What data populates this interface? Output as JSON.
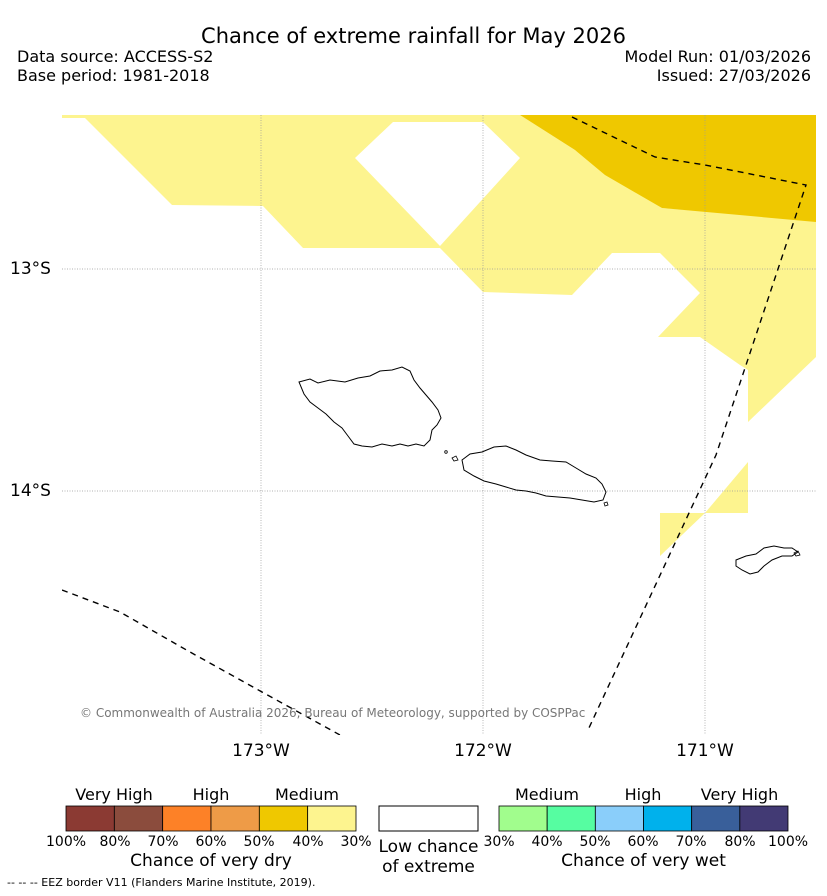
{
  "header": {
    "title": "Chance of extreme rainfall for May 2026",
    "data_source": "Data source: ACCESS-S2",
    "base_period": "Base period: 1981-2018",
    "model_run": "Model Run: 01/03/2026",
    "issued": "Issued: 27/03/2026"
  },
  "map": {
    "lat_labels": [
      "13°S",
      "14°S"
    ],
    "lon_labels": [
      "173°W",
      "172°W",
      "171°W"
    ],
    "copyright": "© Commonwealth of Australia 2026, Bureau of Meteorology, supported by COSPPac",
    "colors": {
      "medium_dry": "#fdf48f",
      "high_dry": "#efc800",
      "coast": "#000000",
      "grid": "#999999"
    }
  },
  "legend": {
    "dry": {
      "headers": [
        "Very High",
        "High",
        "Medium"
      ],
      "colors": [
        "#8b3a33",
        "#8b4c3d",
        "#fd8127",
        "#ee9b47",
        "#efc800",
        "#fdf48f"
      ],
      "ticks": [
        "100%",
        "80%",
        "70%",
        "60%",
        "50%",
        "40%",
        "30%"
      ],
      "caption": "Chance of very dry"
    },
    "neutral": {
      "caption_line1": "Low chance",
      "caption_line2": "of extreme"
    },
    "wet": {
      "headers": [
        "Medium",
        "High",
        "Very High"
      ],
      "colors": [
        "#a1fd8d",
        "#56fda1",
        "#8acefa",
        "#00b1ec",
        "#395f9a",
        "#423a74"
      ],
      "ticks": [
        "30%",
        "40%",
        "50%",
        "60%",
        "70%",
        "80%",
        "100%"
      ],
      "caption": "Chance of very wet"
    },
    "footnote": "--  --  -- EEZ border V11 (Flanders Marine Institute, 2019)."
  }
}
